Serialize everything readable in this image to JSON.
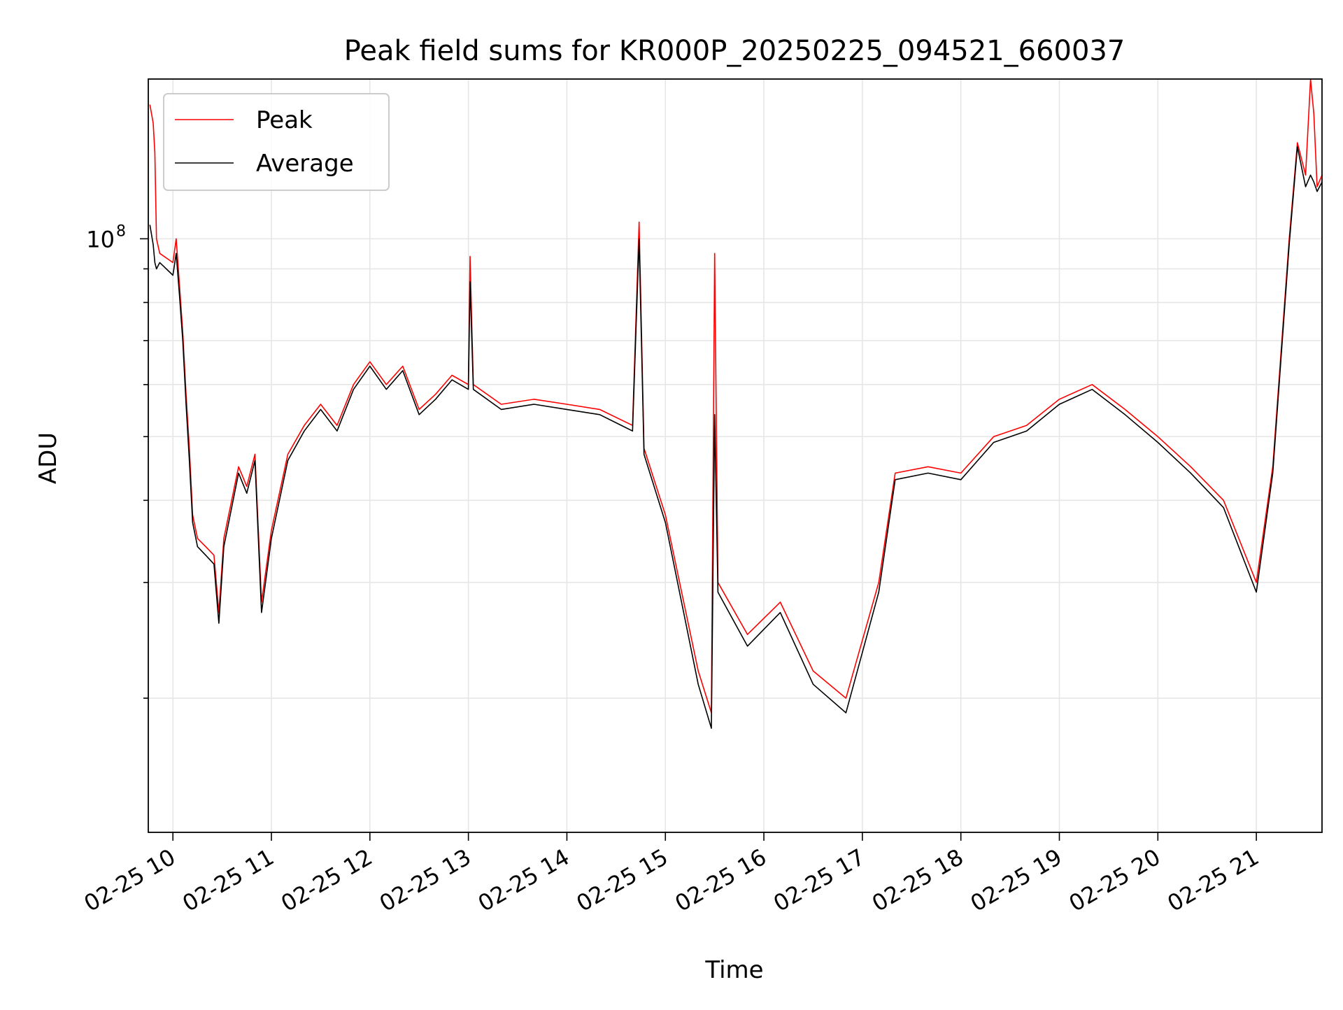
{
  "chart_data": {
    "type": "line",
    "title": "Peak field sums for KR000P_20250225_094521_660037",
    "xlabel": "Time",
    "ylabel": "ADU",
    "x_axis": {
      "kind": "datetime",
      "range": [
        "2025-02-25T09:45",
        "2025-02-25T21:40"
      ],
      "ticks": [
        {
          "value": "2025-02-25T10:00",
          "label": "02-25 10"
        },
        {
          "value": "2025-02-25T11:00",
          "label": "02-25 11"
        },
        {
          "value": "2025-02-25T12:00",
          "label": "02-25 12"
        },
        {
          "value": "2025-02-25T13:00",
          "label": "02-25 13"
        },
        {
          "value": "2025-02-25T14:00",
          "label": "02-25 14"
        },
        {
          "value": "2025-02-25T15:00",
          "label": "02-25 15"
        },
        {
          "value": "2025-02-25T16:00",
          "label": "02-25 16"
        },
        {
          "value": "2025-02-25T17:00",
          "label": "02-25 17"
        },
        {
          "value": "2025-02-25T18:00",
          "label": "02-25 18"
        },
        {
          "value": "2025-02-25T19:00",
          "label": "02-25 19"
        },
        {
          "value": "2025-02-25T20:00",
          "label": "02-25 20"
        },
        {
          "value": "2025-02-25T21:00",
          "label": "02-25 21"
        }
      ]
    },
    "y_axis": {
      "scale": "log",
      "range": [
        12500000,
        175000000
      ],
      "major_ticks": [
        {
          "value": 100000000,
          "label_base": "10",
          "label_exp": "8"
        }
      ],
      "minor_ticks": [
        20000000,
        30000000,
        40000000,
        50000000,
        60000000,
        70000000,
        80000000,
        90000000,
        200000000
      ]
    },
    "grid": true,
    "legend": "top-left",
    "series": [
      {
        "name": "Peak",
        "color": "#ff0000",
        "points": [
          [
            "2025-02-25T09:46",
            160000000
          ],
          [
            "2025-02-25T09:48",
            150000000
          ],
          [
            "2025-02-25T09:49",
            135000000
          ],
          [
            "2025-02-25T09:50",
            100000000
          ],
          [
            "2025-02-25T09:52",
            95000000
          ],
          [
            "2025-02-25T10:00",
            92000000
          ],
          [
            "2025-02-25T10:02",
            100000000
          ],
          [
            "2025-02-25T10:04",
            85000000
          ],
          [
            "2025-02-25T10:06",
            72000000
          ],
          [
            "2025-02-25T10:08",
            58000000
          ],
          [
            "2025-02-25T10:10",
            48000000
          ],
          [
            "2025-02-25T10:12",
            38000000
          ],
          [
            "2025-02-25T10:15",
            35000000
          ],
          [
            "2025-02-25T10:20",
            34000000
          ],
          [
            "2025-02-25T10:25",
            33000000
          ],
          [
            "2025-02-25T10:28",
            27000000
          ],
          [
            "2025-02-25T10:31",
            35000000
          ],
          [
            "2025-02-25T10:40",
            45000000
          ],
          [
            "2025-02-25T10:45",
            42000000
          ],
          [
            "2025-02-25T10:50",
            47000000
          ],
          [
            "2025-02-25T10:54",
            28000000
          ],
          [
            "2025-02-25T11:00",
            36000000
          ],
          [
            "2025-02-25T11:10",
            47000000
          ],
          [
            "2025-02-25T11:20",
            52000000
          ],
          [
            "2025-02-25T11:30",
            56000000
          ],
          [
            "2025-02-25T11:40",
            52000000
          ],
          [
            "2025-02-25T11:50",
            60000000
          ],
          [
            "2025-02-25T12:00",
            65000000
          ],
          [
            "2025-02-25T12:10",
            60000000
          ],
          [
            "2025-02-25T12:20",
            64000000
          ],
          [
            "2025-02-25T12:30",
            55000000
          ],
          [
            "2025-02-25T12:40",
            58000000
          ],
          [
            "2025-02-25T12:50",
            62000000
          ],
          [
            "2025-02-25T13:00",
            60000000
          ],
          [
            "2025-02-25T13:01",
            94000000
          ],
          [
            "2025-02-25T13:03",
            60000000
          ],
          [
            "2025-02-25T13:20",
            56000000
          ],
          [
            "2025-02-25T13:40",
            57000000
          ],
          [
            "2025-02-25T14:00",
            56000000
          ],
          [
            "2025-02-25T14:20",
            55000000
          ],
          [
            "2025-02-25T14:40",
            52000000
          ],
          [
            "2025-02-25T14:44",
            106000000
          ],
          [
            "2025-02-25T14:47",
            48000000
          ],
          [
            "2025-02-25T15:00",
            38000000
          ],
          [
            "2025-02-25T15:20",
            22000000
          ],
          [
            "2025-02-25T15:28",
            19000000
          ],
          [
            "2025-02-25T15:30",
            95000000
          ],
          [
            "2025-02-25T15:32",
            30000000
          ],
          [
            "2025-02-25T15:50",
            25000000
          ],
          [
            "2025-02-25T16:10",
            28000000
          ],
          [
            "2025-02-25T16:30",
            22000000
          ],
          [
            "2025-02-25T16:50",
            20000000
          ],
          [
            "2025-02-25T17:10",
            30000000
          ],
          [
            "2025-02-25T17:20",
            44000000
          ],
          [
            "2025-02-25T17:40",
            45000000
          ],
          [
            "2025-02-25T18:00",
            44000000
          ],
          [
            "2025-02-25T18:20",
            50000000
          ],
          [
            "2025-02-25T18:40",
            52000000
          ],
          [
            "2025-02-25T19:00",
            57000000
          ],
          [
            "2025-02-25T19:20",
            60000000
          ],
          [
            "2025-02-25T19:40",
            55000000
          ],
          [
            "2025-02-25T20:00",
            50000000
          ],
          [
            "2025-02-25T20:20",
            45000000
          ],
          [
            "2025-02-25T20:40",
            40000000
          ],
          [
            "2025-02-25T21:00",
            30000000
          ],
          [
            "2025-02-25T21:10",
            45000000
          ],
          [
            "2025-02-25T21:20",
            100000000
          ],
          [
            "2025-02-25T21:25",
            140000000
          ],
          [
            "2025-02-25T21:30",
            125000000
          ],
          [
            "2025-02-25T21:33",
            175000000
          ],
          [
            "2025-02-25T21:35",
            155000000
          ],
          [
            "2025-02-25T21:37",
            120000000
          ],
          [
            "2025-02-25T21:40",
            125000000
          ]
        ]
      },
      {
        "name": "Average",
        "color": "#000000",
        "points": [
          [
            "2025-02-25T09:46",
            105000000
          ],
          [
            "2025-02-25T09:48",
            98000000
          ],
          [
            "2025-02-25T09:49",
            92000000
          ],
          [
            "2025-02-25T09:50",
            90000000
          ],
          [
            "2025-02-25T09:52",
            92000000
          ],
          [
            "2025-02-25T10:00",
            88000000
          ],
          [
            "2025-02-25T10:02",
            95000000
          ],
          [
            "2025-02-25T10:04",
            82000000
          ],
          [
            "2025-02-25T10:06",
            70000000
          ],
          [
            "2025-02-25T10:08",
            56000000
          ],
          [
            "2025-02-25T10:10",
            46000000
          ],
          [
            "2025-02-25T10:12",
            37000000
          ],
          [
            "2025-02-25T10:15",
            34000000
          ],
          [
            "2025-02-25T10:20",
            33000000
          ],
          [
            "2025-02-25T10:25",
            32000000
          ],
          [
            "2025-02-25T10:28",
            26000000
          ],
          [
            "2025-02-25T10:31",
            34000000
          ],
          [
            "2025-02-25T10:40",
            44000000
          ],
          [
            "2025-02-25T10:45",
            41000000
          ],
          [
            "2025-02-25T10:50",
            46000000
          ],
          [
            "2025-02-25T10:54",
            27000000
          ],
          [
            "2025-02-25T11:00",
            35000000
          ],
          [
            "2025-02-25T11:10",
            46000000
          ],
          [
            "2025-02-25T11:20",
            51000000
          ],
          [
            "2025-02-25T11:30",
            55000000
          ],
          [
            "2025-02-25T11:40",
            51000000
          ],
          [
            "2025-02-25T11:50",
            59000000
          ],
          [
            "2025-02-25T12:00",
            64000000
          ],
          [
            "2025-02-25T12:10",
            59000000
          ],
          [
            "2025-02-25T12:20",
            63000000
          ],
          [
            "2025-02-25T12:30",
            54000000
          ],
          [
            "2025-02-25T12:40",
            57000000
          ],
          [
            "2025-02-25T12:50",
            61000000
          ],
          [
            "2025-02-25T13:00",
            59000000
          ],
          [
            "2025-02-25T13:01",
            86000000
          ],
          [
            "2025-02-25T13:03",
            59000000
          ],
          [
            "2025-02-25T13:20",
            55000000
          ],
          [
            "2025-02-25T13:40",
            56000000
          ],
          [
            "2025-02-25T14:00",
            55000000
          ],
          [
            "2025-02-25T14:20",
            54000000
          ],
          [
            "2025-02-25T14:40",
            51000000
          ],
          [
            "2025-02-25T14:44",
            100000000
          ],
          [
            "2025-02-25T14:47",
            47000000
          ],
          [
            "2025-02-25T15:00",
            37000000
          ],
          [
            "2025-02-25T15:20",
            21000000
          ],
          [
            "2025-02-25T15:28",
            18000000
          ],
          [
            "2025-02-25T15:30",
            54000000
          ],
          [
            "2025-02-25T15:32",
            29000000
          ],
          [
            "2025-02-25T15:50",
            24000000
          ],
          [
            "2025-02-25T16:10",
            27000000
          ],
          [
            "2025-02-25T16:30",
            21000000
          ],
          [
            "2025-02-25T16:50",
            19000000
          ],
          [
            "2025-02-25T17:10",
            29000000
          ],
          [
            "2025-02-25T17:20",
            43000000
          ],
          [
            "2025-02-25T17:40",
            44000000
          ],
          [
            "2025-02-25T18:00",
            43000000
          ],
          [
            "2025-02-25T18:20",
            49000000
          ],
          [
            "2025-02-25T18:40",
            51000000
          ],
          [
            "2025-02-25T19:00",
            56000000
          ],
          [
            "2025-02-25T19:20",
            59000000
          ],
          [
            "2025-02-25T19:40",
            54000000
          ],
          [
            "2025-02-25T20:00",
            49000000
          ],
          [
            "2025-02-25T20:20",
            44000000
          ],
          [
            "2025-02-25T20:40",
            39000000
          ],
          [
            "2025-02-25T21:00",
            29000000
          ],
          [
            "2025-02-25T21:10",
            44000000
          ],
          [
            "2025-02-25T21:20",
            98000000
          ],
          [
            "2025-02-25T21:25",
            138000000
          ],
          [
            "2025-02-25T21:30",
            120000000
          ],
          [
            "2025-02-25T21:33",
            125000000
          ],
          [
            "2025-02-25T21:35",
            122000000
          ],
          [
            "2025-02-25T21:37",
            118000000
          ],
          [
            "2025-02-25T21:40",
            122000000
          ]
        ]
      }
    ]
  }
}
